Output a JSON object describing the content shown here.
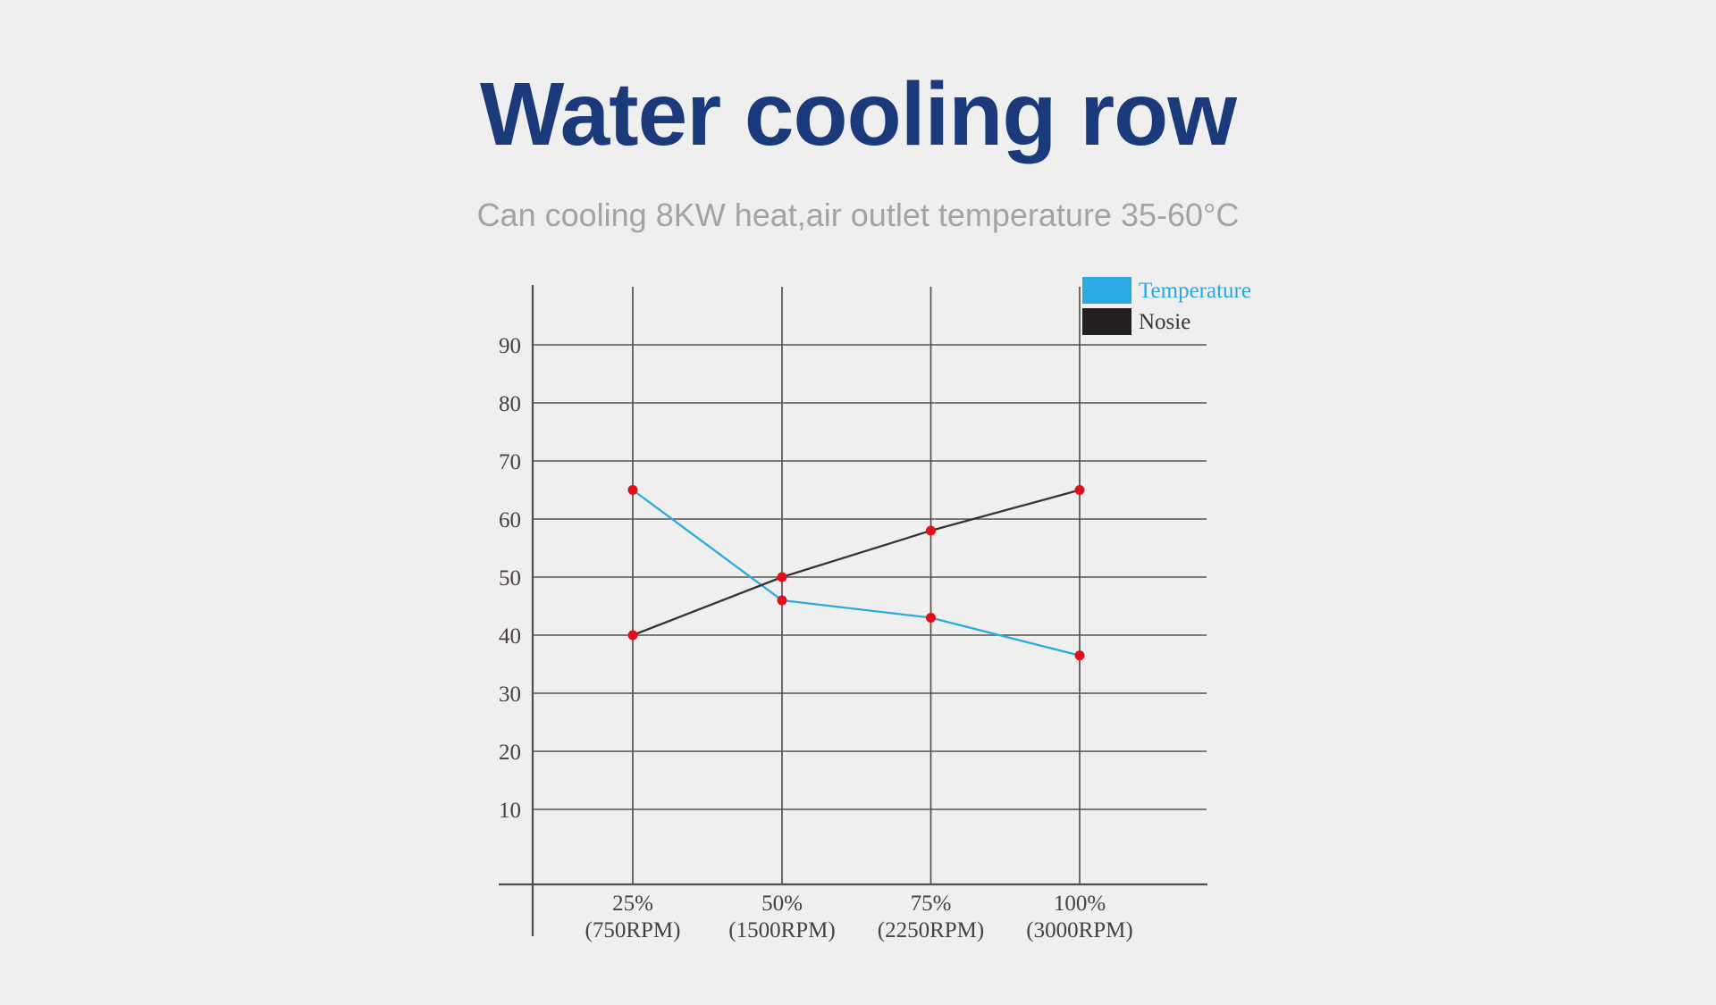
{
  "page": {
    "background": "#f0efef"
  },
  "header": {
    "title": "Water cooling row",
    "title_color": "#1b3a7b",
    "subtitle": "Can cooling 8KW heat,air outlet temperature 35-60°C",
    "subtitle_color": "#a4a3a3"
  },
  "chart_data": {
    "type": "line",
    "title": "",
    "categories": [
      "25%",
      "50%",
      "75%",
      "100%"
    ],
    "category_sublabels": [
      "(750RPM)",
      "(1500RPM)",
      "(2250RPM)",
      "(3000RPM)"
    ],
    "series": [
      {
        "name": "Temperature",
        "values": [
          65,
          46,
          43,
          36.5
        ],
        "line_color": "#29abe2",
        "swatch_color": "#29abe2",
        "label_color": "#2ba7de"
      },
      {
        "name": "Nosie",
        "values": [
          40,
          50,
          58,
          65
        ],
        "line_color": "#3a3334",
        "swatch_color": "#231f20",
        "label_color": "#383334"
      }
    ],
    "marker_color": "#e60e19",
    "marker_shape": "circle",
    "y_ticks": [
      10,
      20,
      30,
      40,
      50,
      60,
      70,
      80,
      90
    ],
    "ylim": [
      0,
      100
    ],
    "xlabel": "",
    "ylabel": "",
    "grid": true,
    "legend_position": "top-right",
    "grid_color": "#56504f",
    "axis_color": "#514b4c",
    "tick_label_color": "#474041"
  }
}
